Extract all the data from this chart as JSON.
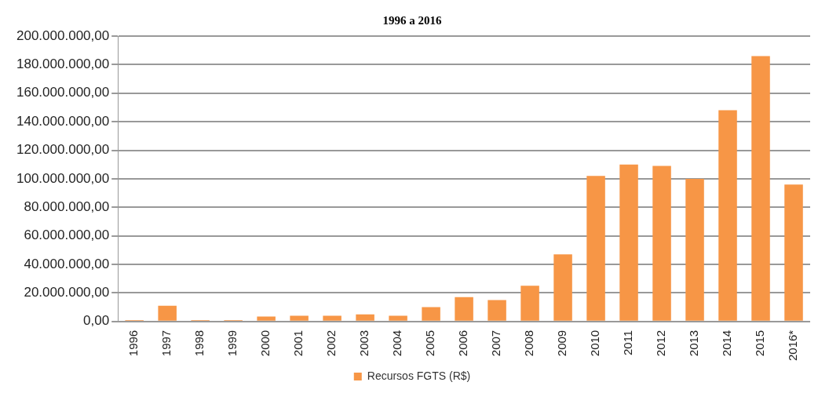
{
  "chart_data": {
    "type": "bar",
    "title": "1996 a 2016",
    "categories": [
      "1996",
      "1997",
      "1998",
      "1999",
      "2000",
      "2001",
      "2002",
      "2003",
      "2004",
      "2005",
      "2006",
      "2007",
      "2008",
      "2009",
      "2010",
      "2011",
      "2012",
      "2013",
      "2014",
      "2015",
      "2016*"
    ],
    "series": [
      {
        "name": "Recursos FGTS (R$)",
        "color": "#f79646",
        "values": [
          1000000,
          11000000,
          1000000,
          1000000,
          3500000,
          4000000,
          4000000,
          5000000,
          4000000,
          10000000,
          17000000,
          15000000,
          25000000,
          47000000,
          102000000,
          110000000,
          109000000,
          100000000,
          148000000,
          186000000,
          96000000
        ]
      }
    ],
    "ylim": [
      0,
      200000000
    ],
    "yticks": [
      {
        "value": 0,
        "label": "0,00"
      },
      {
        "value": 20000000,
        "label": "20.000.000,00"
      },
      {
        "value": 40000000,
        "label": "40.000.000,00"
      },
      {
        "value": 60000000,
        "label": "60.000.000,00"
      },
      {
        "value": 80000000,
        "label": "80.000.000,00"
      },
      {
        "value": 100000000,
        "label": "100.000.000,00"
      },
      {
        "value": 120000000,
        "label": "120.000.000,00"
      },
      {
        "value": 140000000,
        "label": "140.000.000,00"
      },
      {
        "value": 160000000,
        "label": "160.000.000,00"
      },
      {
        "value": 180000000,
        "label": "180.000.000,00"
      },
      {
        "value": 200000000,
        "label": "200.000.000,00"
      }
    ],
    "grid": "y",
    "legend": "bottom"
  }
}
